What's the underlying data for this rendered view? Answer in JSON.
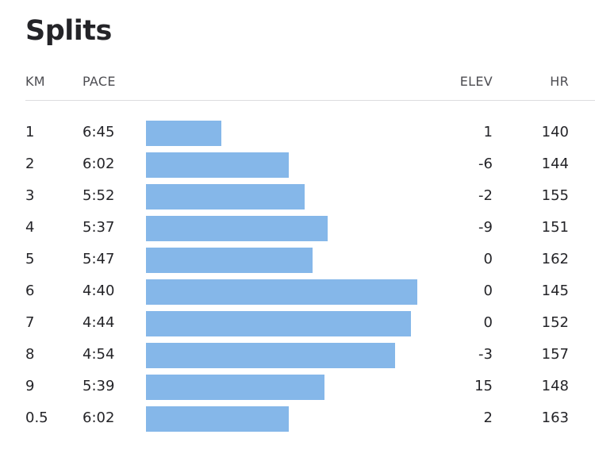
{
  "title": "Splits",
  "headers": {
    "km": "KM",
    "pace": "PACE",
    "elev": "ELEV",
    "hr": "HR"
  },
  "colors": {
    "bar": "#85b7e9",
    "text": "#242428",
    "header_text": "#4d4d52",
    "divider": "#dcdcdf"
  },
  "bar_scale": {
    "slowest_pace_seconds": 410,
    "fastest_pace_seconds": 280
  },
  "splits": [
    {
      "km": "1",
      "pace": "6:45",
      "pace_seconds": 405,
      "elev": "1",
      "hr": "140"
    },
    {
      "km": "2",
      "pace": "6:02",
      "pace_seconds": 362,
      "elev": "-6",
      "hr": "144"
    },
    {
      "km": "3",
      "pace": "5:52",
      "pace_seconds": 352,
      "elev": "-2",
      "hr": "155"
    },
    {
      "km": "4",
      "pace": "5:37",
      "pace_seconds": 337,
      "elev": "-9",
      "hr": "151"
    },
    {
      "km": "5",
      "pace": "5:47",
      "pace_seconds": 347,
      "elev": "0",
      "hr": "162"
    },
    {
      "km": "6",
      "pace": "4:40",
      "pace_seconds": 280,
      "elev": "0",
      "hr": "145"
    },
    {
      "km": "7",
      "pace": "4:44",
      "pace_seconds": 284,
      "elev": "0",
      "hr": "152"
    },
    {
      "km": "8",
      "pace": "4:54",
      "pace_seconds": 294,
      "elev": "-3",
      "hr": "157"
    },
    {
      "km": "9",
      "pace": "5:39",
      "pace_seconds": 339,
      "elev": "15",
      "hr": "148"
    },
    {
      "km": "0.5",
      "pace": "6:02",
      "pace_seconds": 362,
      "elev": "2",
      "hr": "163"
    }
  ]
}
